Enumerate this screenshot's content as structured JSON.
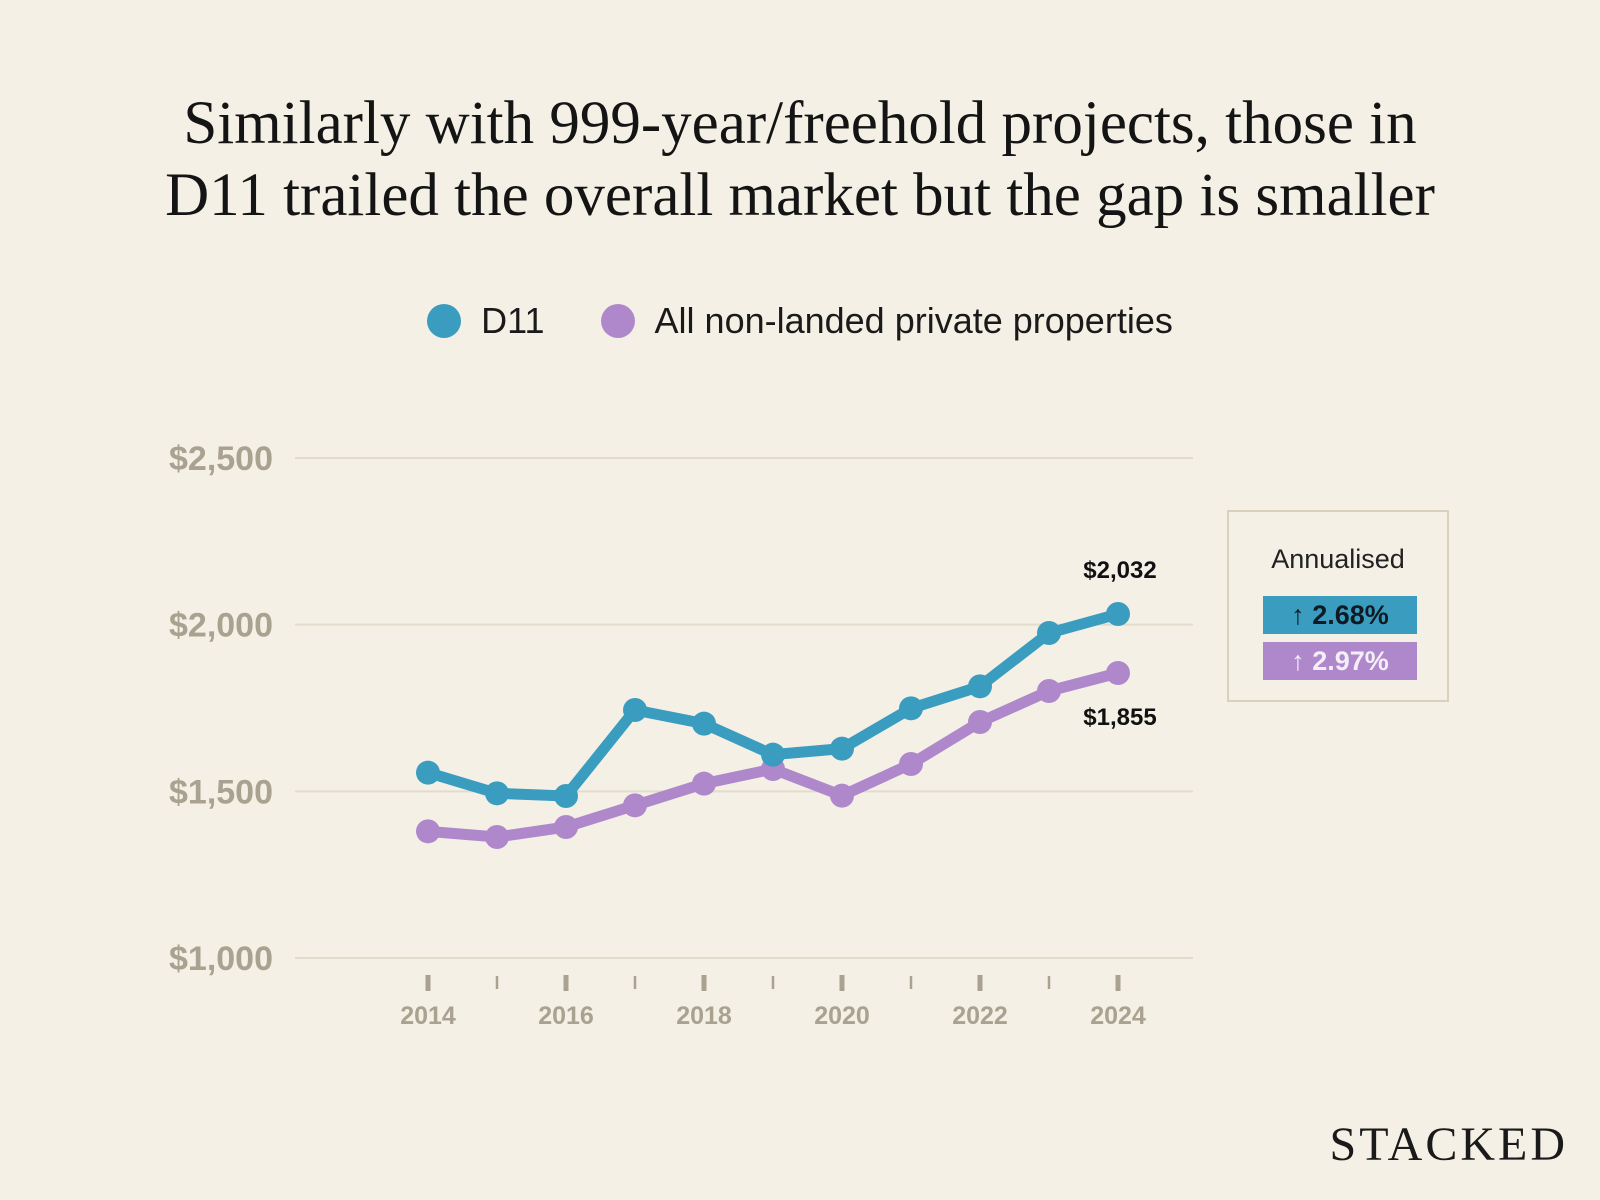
{
  "title_lines": [
    "Similarly with 999-year/freehold projects, those in",
    "D11 trailed the overall market but the gap is smaller"
  ],
  "legend": [
    {
      "label": "D11",
      "color": "#3a9dc0"
    },
    {
      "label": "All non-landed private properties",
      "color": "#ae88cb"
    }
  ],
  "annualised": {
    "title": "Annualised",
    "d11": "↑ 2.68%",
    "all": "↑ 2.97%"
  },
  "logo": "STACKED",
  "chart_data": {
    "type": "line",
    "title": "Similarly with 999-year/freehold projects, those in D11 trailed the overall market but the gap is smaller",
    "xlabel": "",
    "ylabel": "",
    "x": [
      2014,
      2015,
      2016,
      2017,
      2018,
      2019,
      2020,
      2021,
      2022,
      2023,
      2024
    ],
    "x_tick_labels": [
      "2014",
      "2016",
      "2018",
      "2020",
      "2022",
      "2024"
    ],
    "ylim": [
      1000,
      2500
    ],
    "y_ticks": [
      2500,
      2000,
      1500,
      1000
    ],
    "y_tick_labels": [
      "$2,500",
      "$2,000",
      "$1,500",
      "$1,000"
    ],
    "grid": true,
    "legend_position": "top-center",
    "series": [
      {
        "name": "D11",
        "color": "#3a9dc0",
        "values": [
          1556,
          1494,
          1486,
          1744,
          1703,
          1610,
          1628,
          1749,
          1815,
          1975,
          2032
        ],
        "end_label": "$2,032"
      },
      {
        "name": "All non-landed private properties",
        "color": "#ae88cb",
        "values": [
          1380,
          1363,
          1393,
          1458,
          1523,
          1567,
          1487,
          1582,
          1708,
          1801,
          1855
        ],
        "end_label": "$1,855"
      }
    ]
  }
}
